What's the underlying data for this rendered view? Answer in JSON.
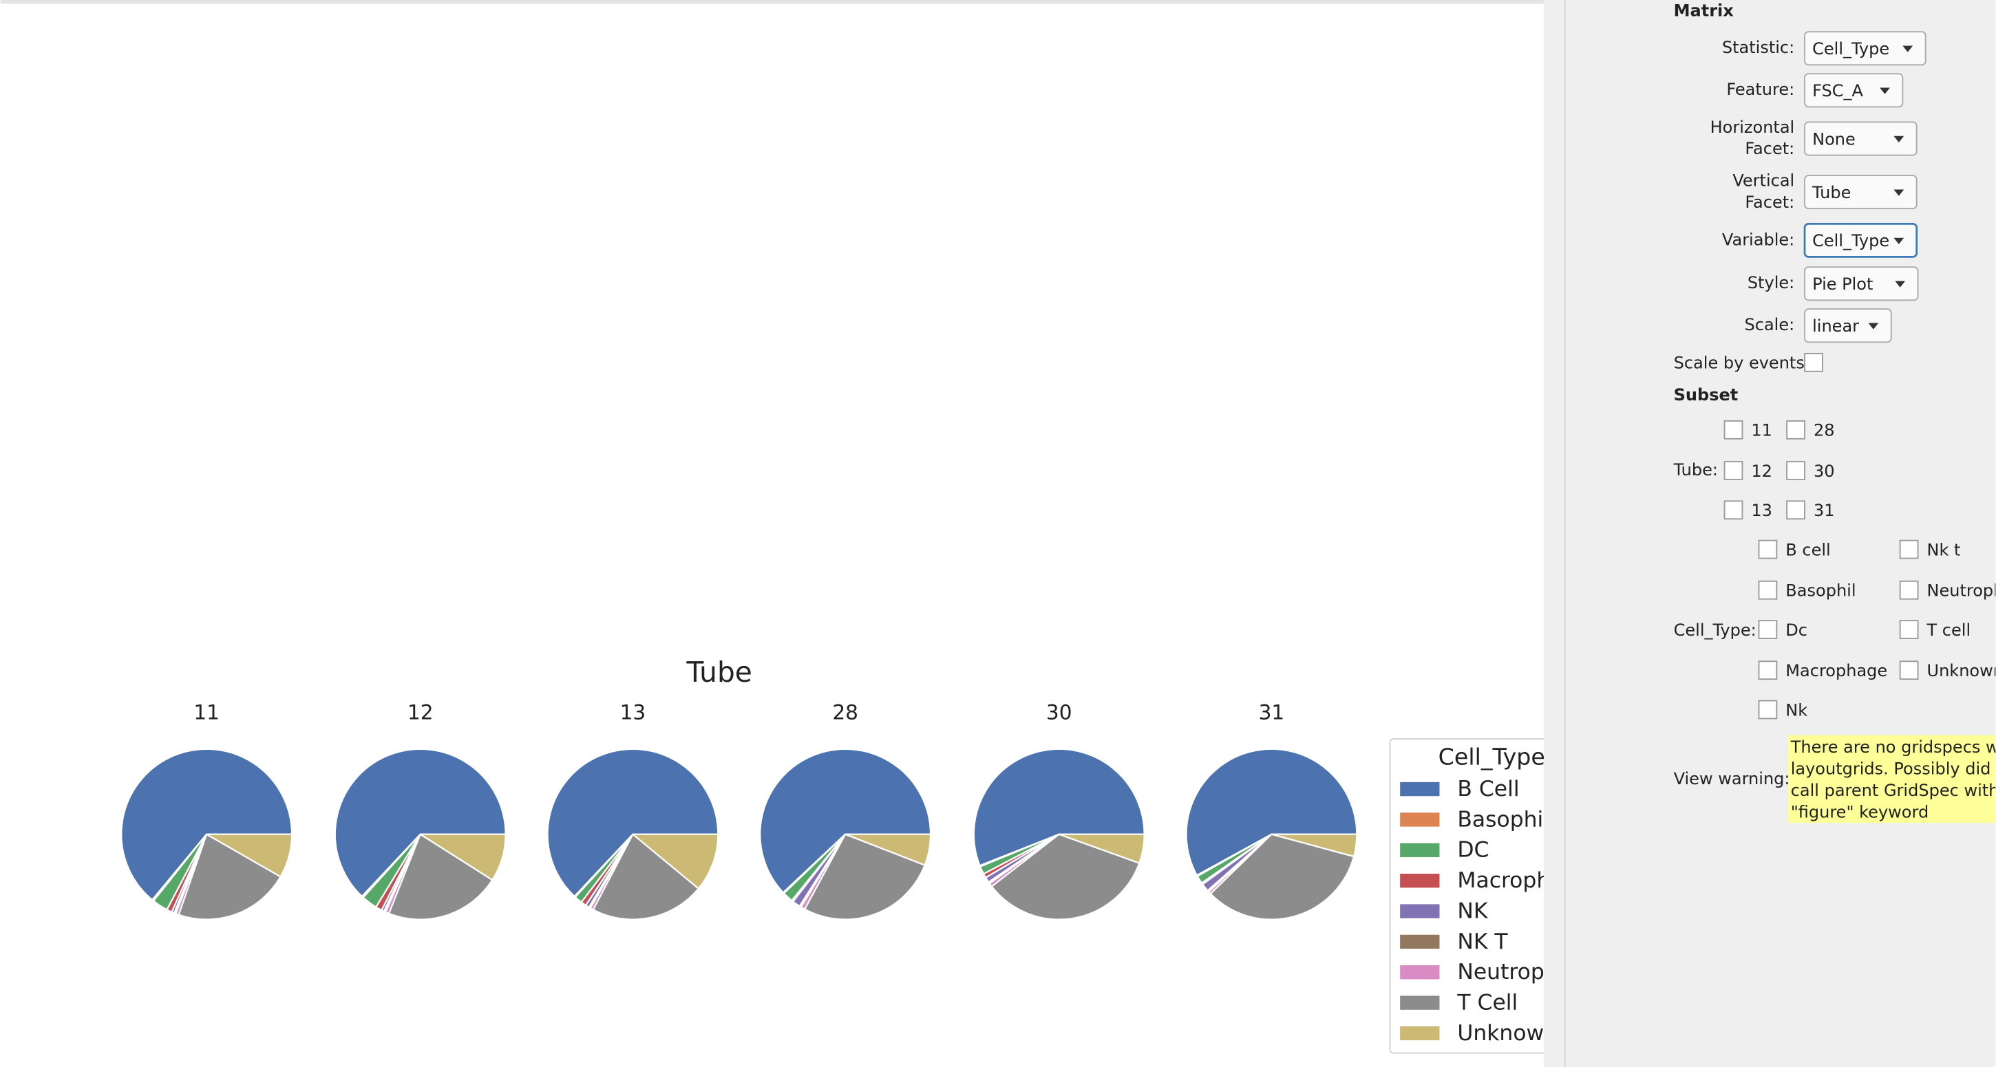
{
  "chart_data": [
    {
      "type": "pie",
      "title": "11",
      "categories": [
        "B Cell",
        "Basophil",
        "DC",
        "Macrophage",
        "NK",
        "NK T",
        "Neutrophil",
        "T Cell",
        "Unknown"
      ],
      "values": [
        64,
        0.3,
        3,
        1,
        0.5,
        0.3,
        0.6,
        22,
        8.3
      ],
      "colors": [
        "#4c72b0",
        "#dd8452",
        "#55a868",
        "#c44e52",
        "#8172b3",
        "#937860",
        "#da8bc3",
        "#8c8c8c",
        "#ccb974"
      ]
    },
    {
      "type": "pie",
      "title": "12",
      "categories": [
        "B Cell",
        "Basophil",
        "DC",
        "Macrophage",
        "NK",
        "NK T",
        "Neutrophil",
        "T Cell",
        "Unknown"
      ],
      "values": [
        63,
        0.3,
        3,
        1.2,
        0.5,
        0.3,
        0.7,
        22,
        9
      ],
      "colors": [
        "#4c72b0",
        "#dd8452",
        "#55a868",
        "#c44e52",
        "#8172b3",
        "#937860",
        "#da8bc3",
        "#8c8c8c",
        "#ccb974"
      ]
    },
    {
      "type": "pie",
      "title": "13",
      "categories": [
        "B Cell",
        "Basophil",
        "DC",
        "Macrophage",
        "NK",
        "NK T",
        "Neutrophil",
        "T Cell",
        "Unknown"
      ],
      "values": [
        63,
        0.2,
        1.5,
        1,
        0.7,
        0.3,
        0.6,
        21.7,
        11
      ],
      "colors": [
        "#4c72b0",
        "#dd8452",
        "#55a868",
        "#c44e52",
        "#8172b3",
        "#937860",
        "#da8bc3",
        "#8c8c8c",
        "#ccb974"
      ]
    },
    {
      "type": "pie",
      "title": "28",
      "categories": [
        "B Cell",
        "Basophil",
        "DC",
        "Macrophage",
        "NK",
        "NK T",
        "Neutrophil",
        "T Cell",
        "Unknown"
      ],
      "values": [
        62,
        0.2,
        2,
        0.3,
        1.5,
        0.3,
        0.8,
        27,
        5.9
      ],
      "colors": [
        "#4c72b0",
        "#dd8452",
        "#55a868",
        "#c44e52",
        "#8172b3",
        "#937860",
        "#da8bc3",
        "#8c8c8c",
        "#ccb974"
      ]
    },
    {
      "type": "pie",
      "title": "30",
      "categories": [
        "B Cell",
        "Basophil",
        "DC",
        "Macrophage",
        "NK",
        "NK T",
        "Neutrophil",
        "T Cell",
        "Unknown"
      ],
      "values": [
        56,
        0.2,
        1.5,
        0.8,
        1,
        0.3,
        0.7,
        34,
        5.5
      ],
      "colors": [
        "#4c72b0",
        "#dd8452",
        "#55a868",
        "#c44e52",
        "#8172b3",
        "#937860",
        "#da8bc3",
        "#8c8c8c",
        "#ccb974"
      ]
    },
    {
      "type": "pie",
      "title": "31",
      "categories": [
        "B Cell",
        "Basophil",
        "DC",
        "Macrophage",
        "NK",
        "NK T",
        "Neutrophil",
        "T Cell",
        "Unknown"
      ],
      "values": [
        58,
        0.2,
        1.5,
        0.3,
        1.5,
        0.3,
        0.5,
        33.5,
        4.2
      ],
      "colors": [
        "#4c72b0",
        "#dd8452",
        "#55a868",
        "#c44e52",
        "#8172b3",
        "#937860",
        "#da8bc3",
        "#8c8c8c",
        "#ccb974"
      ]
    }
  ],
  "figure": {
    "title": "Tube",
    "legend_title": "Cell_Type"
  },
  "panel": {
    "heading": "Matrix",
    "fields": [
      {
        "label": [
          "Statistic:"
        ],
        "value": "Cell_Type"
      },
      {
        "label": [
          "Feature:"
        ],
        "value": "FSC_A"
      },
      {
        "label": [
          "Horizontal",
          "Facet:"
        ],
        "value": "None"
      },
      {
        "label": [
          "Vertical",
          "Facet:"
        ],
        "value": "Tube"
      },
      {
        "label": [
          "Variable:"
        ],
        "value": "Cell_Type"
      },
      {
        "label": [
          "Style:"
        ],
        "value": "Pie Plot"
      },
      {
        "label": [
          "Scale:"
        ],
        "value": "linear"
      }
    ],
    "scale_by_events": "Scale by events:",
    "subset_heading": "Subset",
    "tube_label": "Tube:",
    "tubes": [
      "11",
      "12",
      "13",
      "28",
      "30",
      "31"
    ],
    "cell_type_label": "Cell_Type:",
    "cell_types": [
      "B cell",
      "Basophil",
      "Dc",
      "Macrophage",
      "Nk",
      "Nk t",
      "Neutrophil",
      "T cell",
      "Unknown"
    ],
    "warning_label": "View warning:",
    "warning_lines": [
      "There are no gridspecs with",
      "layoutgrids. Possibly did not",
      "call parent GridSpec with the",
      "\"figure\" keyword"
    ]
  }
}
